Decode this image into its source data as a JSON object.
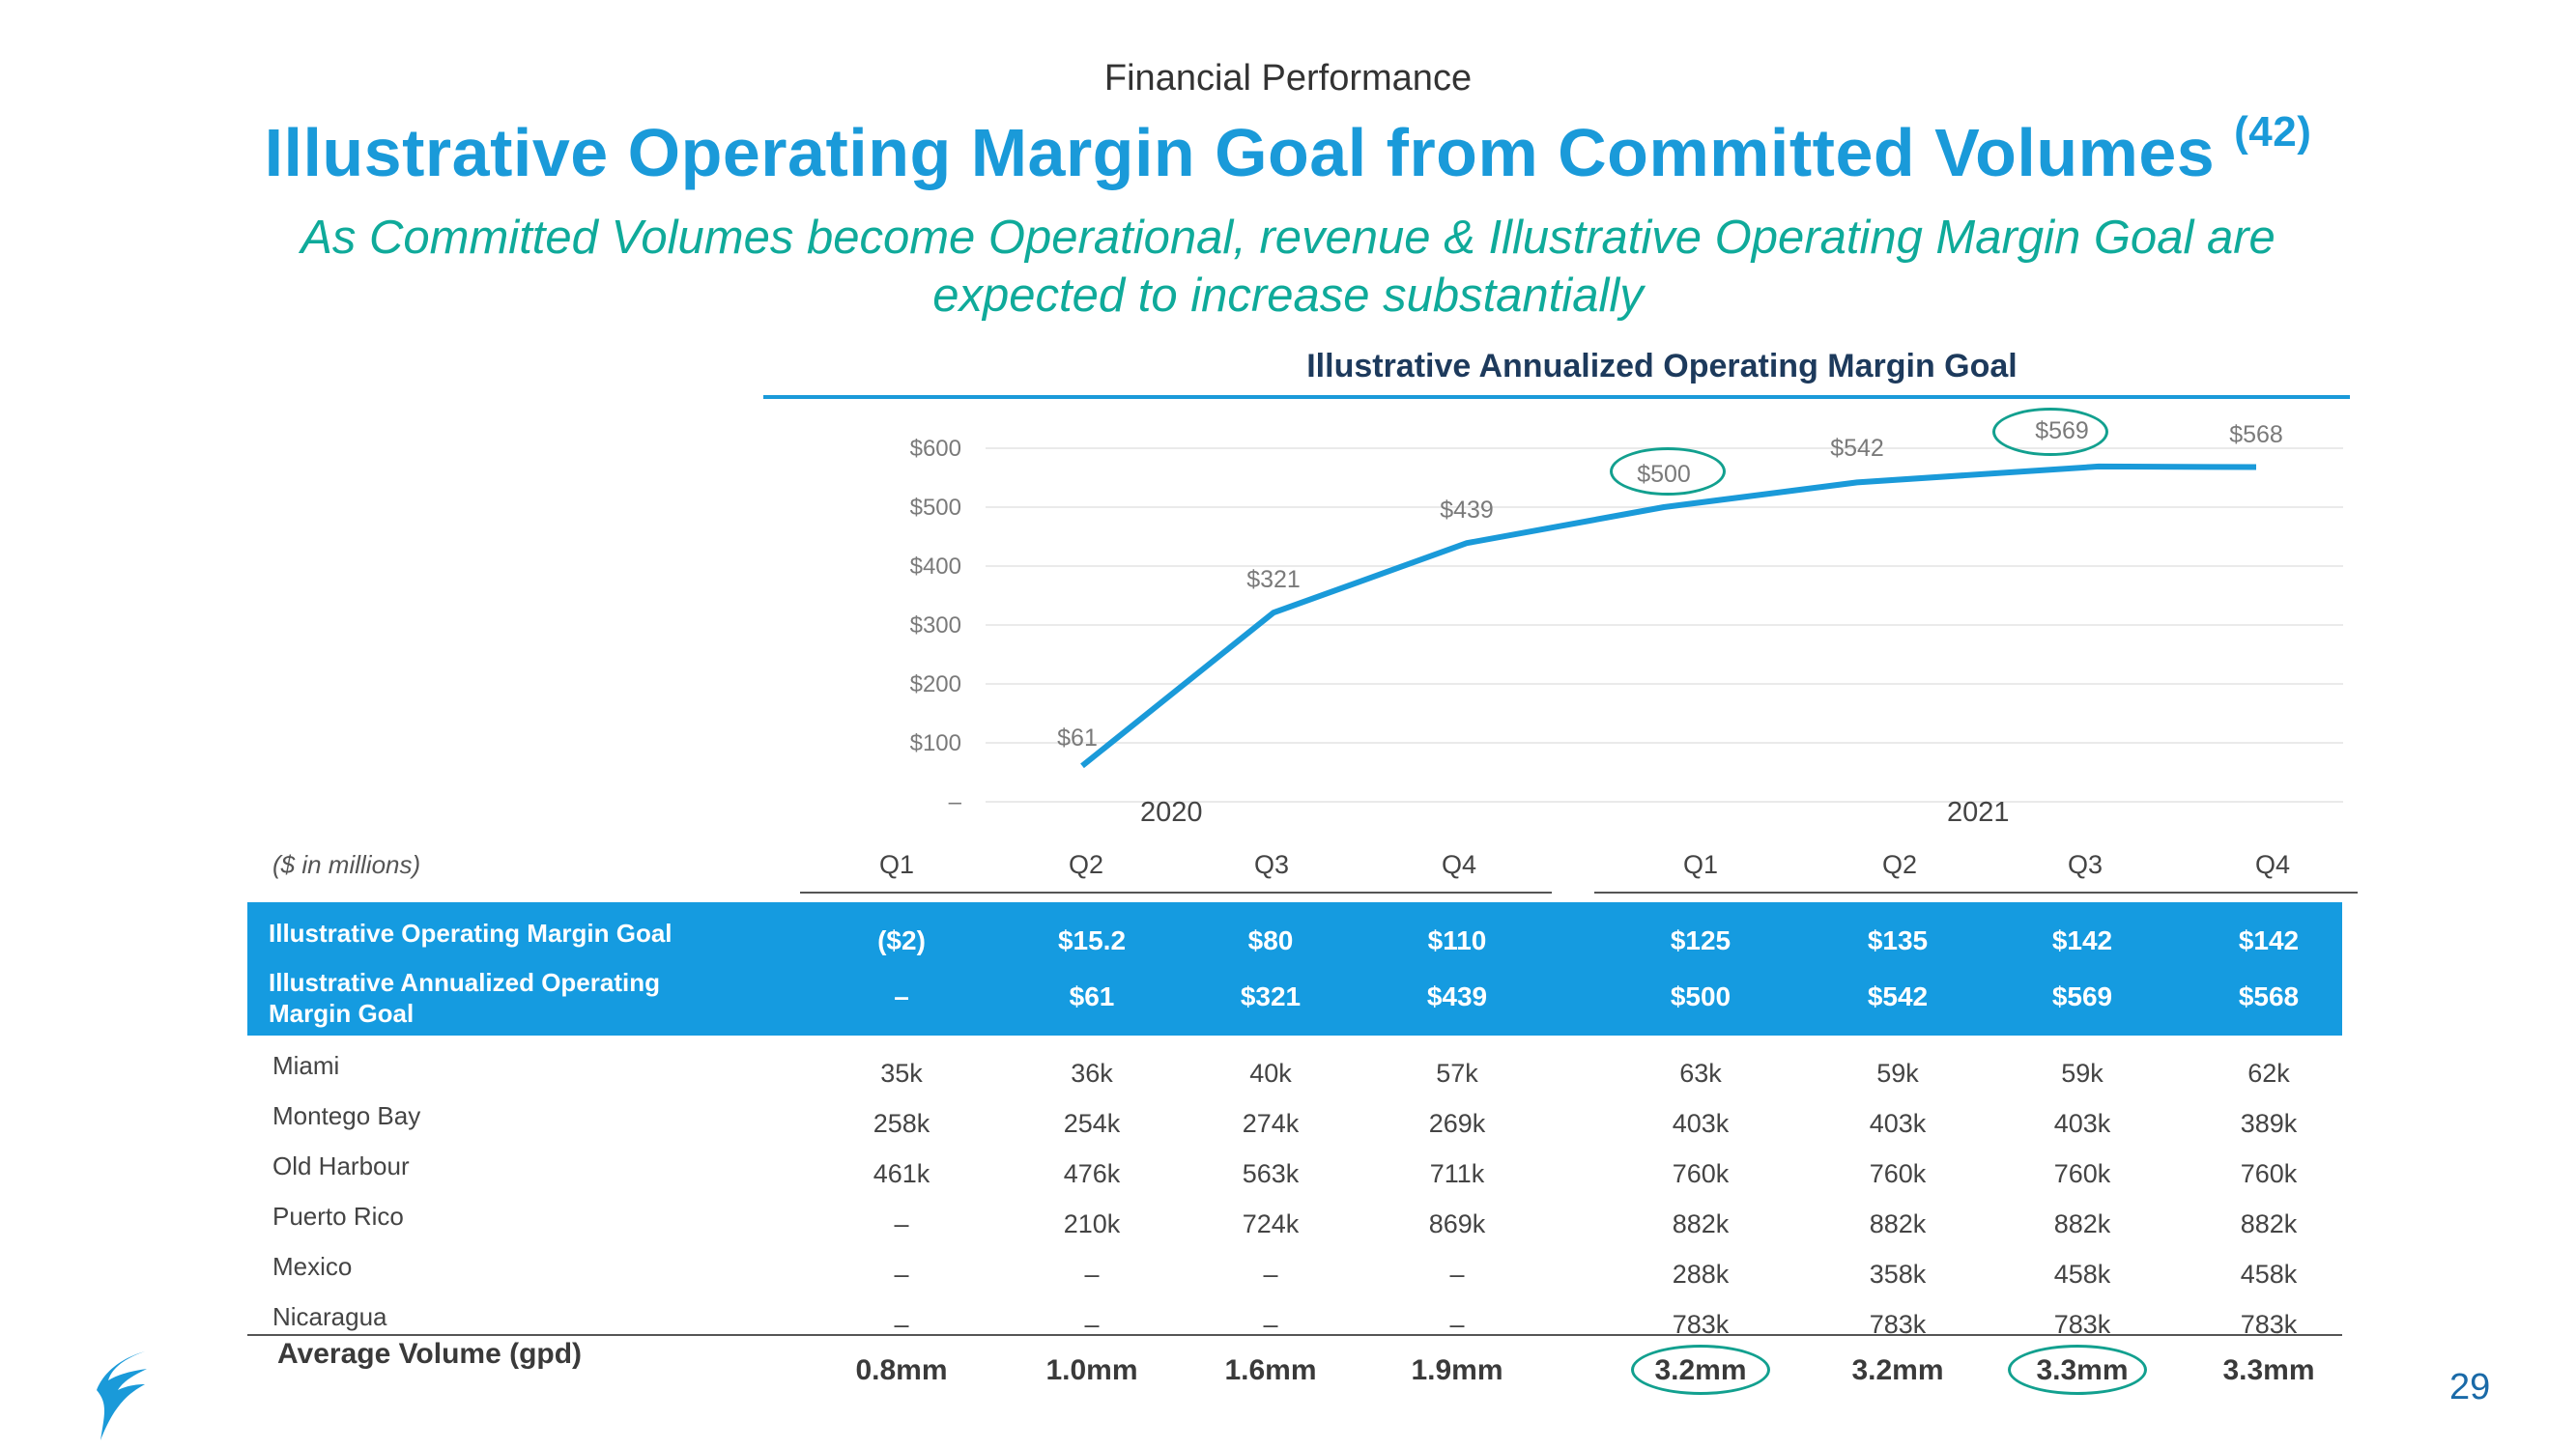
{
  "section": "Financial Performance",
  "title": "Illustrative Operating Margin Goal from Committed Volumes",
  "title_ref": "(42)",
  "subtitle_line1": "As Committed Volumes become Operational, revenue & Illustrative Operating Margin Goal are",
  "subtitle_line2": "expected to increase substantially",
  "units_note": "($ in millions)",
  "page_number": "29",
  "colors": {
    "brand_blue": "#1a9ad9",
    "teal": "#0faa9a",
    "band": "#159be0",
    "line": "#1a9ad9"
  },
  "chart_data": {
    "type": "line",
    "title": "Illustrative Annualized Operating Margin Goal",
    "years": [
      "2020",
      "2021"
    ],
    "categories": [
      "Q1",
      "Q2",
      "Q3",
      "Q4",
      "Q1",
      "Q2",
      "Q3",
      "Q4"
    ],
    "yticks": [
      "–",
      "$100",
      "$200",
      "$300",
      "$400",
      "$500",
      "$600"
    ],
    "ylim": [
      0,
      600
    ],
    "series": [
      {
        "name": "Illustrative Annualized Operating Margin Goal",
        "values": [
          null,
          61,
          321,
          439,
          500,
          542,
          569,
          568
        ],
        "labels": [
          "",
          "$61",
          "$321",
          "$439",
          "$500",
          "$542",
          "$569",
          "$568"
        ]
      }
    ],
    "highlighted_labels": [
      "$500",
      "$569"
    ]
  },
  "table": {
    "band_rows": [
      {
        "label": "Illustrative Operating Margin Goal",
        "values": [
          "($2)",
          "$15.2",
          "$80",
          "$110",
          "$125",
          "$135",
          "$142",
          "$142"
        ]
      },
      {
        "label": "Illustrative Annualized Operating Margin Goal",
        "values": [
          "–",
          "$61",
          "$321",
          "$439",
          "$500",
          "$542",
          "$569",
          "$568"
        ]
      }
    ],
    "volume_rows": [
      {
        "label": "Miami",
        "values": [
          "35k",
          "36k",
          "40k",
          "57k",
          "63k",
          "59k",
          "59k",
          "62k"
        ]
      },
      {
        "label": "Montego Bay",
        "values": [
          "258k",
          "254k",
          "274k",
          "269k",
          "403k",
          "403k",
          "403k",
          "389k"
        ]
      },
      {
        "label": "Old Harbour",
        "values": [
          "461k",
          "476k",
          "563k",
          "711k",
          "760k",
          "760k",
          "760k",
          "760k"
        ]
      },
      {
        "label": "Puerto Rico",
        "values": [
          "–",
          "210k",
          "724k",
          "869k",
          "882k",
          "882k",
          "882k",
          "882k"
        ]
      },
      {
        "label": "Mexico",
        "values": [
          "–",
          "–",
          "–",
          "–",
          "288k",
          "358k",
          "458k",
          "458k"
        ]
      },
      {
        "label": "Nicaragua",
        "values": [
          "–",
          "–",
          "–",
          "–",
          "783k",
          "783k",
          "783k",
          "783k"
        ]
      }
    ],
    "average": {
      "label": "Average Volume (gpd)",
      "values": [
        "0.8mm",
        "1.0mm",
        "1.6mm",
        "1.9mm",
        "3.2mm",
        "3.2mm",
        "3.3mm",
        "3.3mm"
      ]
    }
  }
}
